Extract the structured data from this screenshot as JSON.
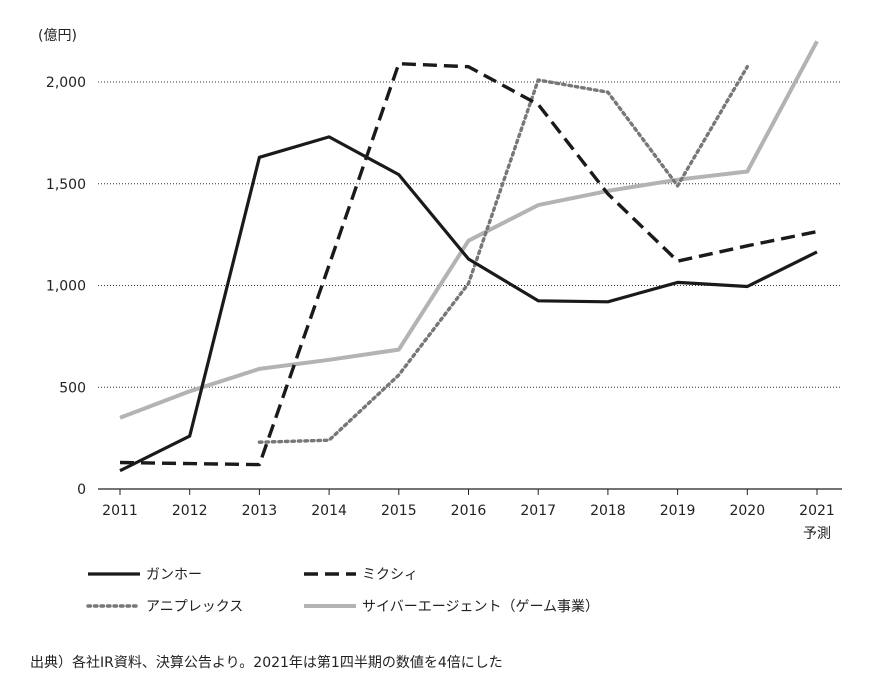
{
  "chart_data": {
    "type": "line",
    "unit_label": "(億円)",
    "x": [
      "2011",
      "2012",
      "2013",
      "2014",
      "2015",
      "2016",
      "2017",
      "2018",
      "2019",
      "2020",
      "2021"
    ],
    "x_sublabels": [
      "",
      "",
      "",
      "",
      "",
      "",
      "",
      "",
      "",
      "",
      "予測"
    ],
    "ylim": [
      0,
      2200
    ],
    "yticks": [
      0,
      500,
      1000,
      1500,
      2000
    ],
    "ytick_labels": [
      "0",
      "500",
      "1,000",
      "1,500",
      "2,000"
    ],
    "grid": true,
    "legend_position": "bottom",
    "series": [
      {
        "name": "ガンホー",
        "style": "solid",
        "color": "#1a1a1a",
        "values": [
          90,
          260,
          1630,
          1730,
          1545,
          1130,
          925,
          920,
          1015,
          995,
          1165
        ]
      },
      {
        "name": "ミクシィ",
        "style": "dashed",
        "color": "#1a1a1a",
        "values": [
          130,
          125,
          120,
          1100,
          2090,
          2075,
          1890,
          1450,
          1120,
          1195,
          1265
        ]
      },
      {
        "name": "アニプレックス",
        "style": "dotted",
        "color": "#777777",
        "values": [
          null,
          null,
          230,
          240,
          560,
          1010,
          2010,
          1950,
          1490,
          2075,
          null
        ]
      },
      {
        "name": "サイバーエージェント（ゲーム事業）",
        "style": "solid",
        "color": "#b3b3b3",
        "values": [
          350,
          480,
          590,
          635,
          685,
          1220,
          1395,
          1465,
          1520,
          1560,
          2200
        ]
      }
    ]
  },
  "source_note": "出典）各社IR資料、決算公告より。2021年は第1四半期の数値を4倍にした"
}
